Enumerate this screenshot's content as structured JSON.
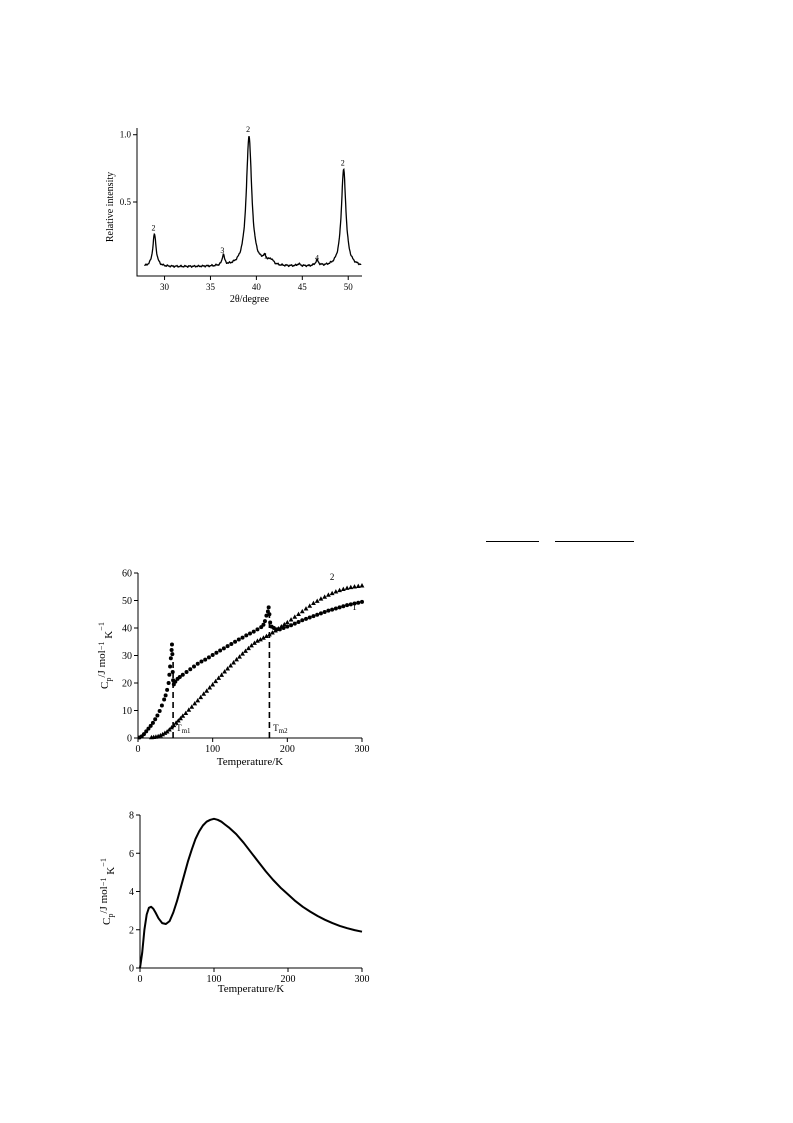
{
  "chart_data": [
    {
      "type": "line",
      "xlabel": "2θ/degree",
      "ylabel": "Relative intensity",
      "xlim": [
        27,
        51.5
      ],
      "ylim": [
        -0.05,
        1.05
      ],
      "xticks": [
        30,
        35,
        40,
        45,
        50
      ],
      "yticks": [
        0.5,
        1.0
      ],
      "yticklabels": [
        "0.5",
        "1.0"
      ],
      "grid": false,
      "baseline": 0.018,
      "peaks": [
        {
          "x": 28.9,
          "height": 0.24,
          "width": 0.22
        },
        {
          "x": 36.4,
          "height": 0.08,
          "width": 0.15
        },
        {
          "x": 39.2,
          "height": 0.97,
          "width": 0.35
        },
        {
          "x": 40.9,
          "height": 0.045,
          "width": 0.3
        },
        {
          "x": 41.6,
          "height": 0.035,
          "width": 0.3
        },
        {
          "x": 44.6,
          "height": 0.015,
          "width": 0.2
        },
        {
          "x": 46.6,
          "height": 0.04,
          "width": 0.2
        },
        {
          "x": 49.5,
          "height": 0.72,
          "width": 0.3
        }
      ],
      "annotations": [
        {
          "text": "2",
          "x": 28.8,
          "y": 0.29
        },
        {
          "text": "3",
          "x": 36.3,
          "y": 0.12
        },
        {
          "text": "2",
          "x": 39.1,
          "y": 1.02
        },
        {
          "text": "1",
          "x": 41.0,
          "y": 0.08
        },
        {
          "text": "4",
          "x": 46.6,
          "y": 0.065
        },
        {
          "text": "2",
          "x": 49.4,
          "y": 0.77
        }
      ]
    },
    {
      "type": "scatter",
      "xlabel": "Temperature/K",
      "ylabel": "Cp/J mol⁻¹ K⁻¹",
      "ylabel_parts": {
        "c": "C",
        "sub": "p",
        "unit": "/J mol",
        "exp1": "−1",
        "k": " K",
        "exp2": "−1"
      },
      "xlim": [
        0,
        300
      ],
      "ylim": [
        0,
        60
      ],
      "xticks": [
        0,
        100,
        200,
        300
      ],
      "yticks": [
        0,
        10,
        20,
        30,
        40,
        50,
        60
      ],
      "grid": false,
      "series": [
        {
          "name": "1",
          "marker": "circle",
          "points": [
            [
              2,
              0.2
            ],
            [
              5,
              0.6
            ],
            [
              8,
              1.4
            ],
            [
              11,
              2.4
            ],
            [
              14,
              3.4
            ],
            [
              17,
              4.4
            ],
            [
              20,
              5.5
            ],
            [
              23,
              6.8
            ],
            [
              26,
              8.2
            ],
            [
              29,
              9.8
            ],
            [
              32,
              11.8
            ],
            [
              35,
              14.0
            ],
            [
              37,
              15.5
            ],
            [
              39,
              17.5
            ],
            [
              41,
              20.0
            ],
            [
              42,
              23.0
            ],
            [
              43,
              26.0
            ],
            [
              44,
              29.0
            ],
            [
              45,
              32.0
            ],
            [
              45.5,
              34.0
            ],
            [
              46,
              30.5
            ],
            [
              46.5,
              24.0
            ],
            [
              47,
              21.0
            ],
            [
              48,
              19.5
            ],
            [
              50,
              20.5
            ],
            [
              53,
              21.5
            ],
            [
              56,
              22.2
            ],
            [
              60,
              23.0
            ],
            [
              65,
              24.0
            ],
            [
              70,
              25.0
            ],
            [
              75,
              26.0
            ],
            [
              80,
              27.0
            ],
            [
              85,
              27.8
            ],
            [
              90,
              28.5
            ],
            [
              95,
              29.3
            ],
            [
              100,
              30.2
            ],
            [
              105,
              31.0
            ],
            [
              110,
              31.8
            ],
            [
              115,
              32.6
            ],
            [
              120,
              33.4
            ],
            [
              125,
              34.2
            ],
            [
              130,
              35.0
            ],
            [
              135,
              35.8
            ],
            [
              140,
              36.5
            ],
            [
              145,
              37.3
            ],
            [
              150,
              38.0
            ],
            [
              155,
              38.7
            ],
            [
              160,
              39.5
            ],
            [
              165,
              40.3
            ],
            [
              168,
              41.2
            ],
            [
              170,
              42.5
            ],
            [
              172,
              44.5
            ],
            [
              174,
              46.0
            ],
            [
              175,
              47.5
            ],
            [
              176,
              45.0
            ],
            [
              177,
              42.0
            ],
            [
              179,
              40.5
            ],
            [
              182,
              40.0
            ],
            [
              186,
              39.5
            ],
            [
              190,
              39.5
            ],
            [
              195,
              40.0
            ],
            [
              200,
              40.5
            ],
            [
              205,
              41.0
            ],
            [
              210,
              41.6
            ],
            [
              215,
              42.2
            ],
            [
              220,
              42.8
            ],
            [
              225,
              43.3
            ],
            [
              230,
              43.8
            ],
            [
              235,
              44.3
            ],
            [
              240,
              44.8
            ],
            [
              245,
              45.3
            ],
            [
              250,
              45.8
            ],
            [
              255,
              46.3
            ],
            [
              260,
              46.7
            ],
            [
              265,
              47.1
            ],
            [
              270,
              47.5
            ],
            [
              275,
              47.9
            ],
            [
              280,
              48.3
            ],
            [
              285,
              48.6
            ],
            [
              290,
              48.9
            ],
            [
              295,
              49.2
            ],
            [
              300,
              49.5
            ]
          ]
        },
        {
          "name": "2",
          "marker": "triangle",
          "points": [
            [
              18,
              0.2
            ],
            [
              21,
              0.3
            ],
            [
              24,
              0.4
            ],
            [
              27,
              0.6
            ],
            [
              30,
              0.9
            ],
            [
              33,
              1.3
            ],
            [
              36,
              1.8
            ],
            [
              39,
              2.3
            ],
            [
              42,
              3.0
            ],
            [
              45,
              3.8
            ],
            [
              48,
              4.6
            ],
            [
              51,
              5.5
            ],
            [
              54,
              6.3
            ],
            [
              57,
              7.1
            ],
            [
              60,
              8.0
            ],
            [
              64,
              9.0
            ],
            [
              68,
              10.2
            ],
            [
              72,
              11.3
            ],
            [
              76,
              12.5
            ],
            [
              80,
              13.6
            ],
            [
              84,
              14.8
            ],
            [
              88,
              16.0
            ],
            [
              92,
              17.1
            ],
            [
              96,
              18.3
            ],
            [
              100,
              19.4
            ],
            [
              104,
              20.6
            ],
            [
              108,
              21.8
            ],
            [
              112,
              22.9
            ],
            [
              116,
              24.1
            ],
            [
              120,
              25.2
            ],
            [
              124,
              26.3
            ],
            [
              128,
              27.4
            ],
            [
              132,
              28.5
            ],
            [
              136,
              29.5
            ],
            [
              140,
              30.6
            ],
            [
              144,
              31.6
            ],
            [
              148,
              32.6
            ],
            [
              152,
              33.6
            ],
            [
              156,
              34.5
            ],
            [
              160,
              35.3
            ],
            [
              164,
              35.8
            ],
            [
              168,
              36.4
            ],
            [
              172,
              37.0
            ],
            [
              176,
              37.6
            ],
            [
              180,
              38.3
            ],
            [
              184,
              39.0
            ],
            [
              188,
              39.8
            ],
            [
              192,
              40.5
            ],
            [
              196,
              41.3
            ],
            [
              200,
              42.0
            ],
            [
              205,
              43.0
            ],
            [
              210,
              44.0
            ],
            [
              215,
              45.0
            ],
            [
              220,
              46.0
            ],
            [
              225,
              47.0
            ],
            [
              230,
              48.0
            ],
            [
              235,
              49.0
            ],
            [
              240,
              49.8
            ],
            [
              245,
              50.6
            ],
            [
              250,
              51.3
            ],
            [
              255,
              52.0
            ],
            [
              260,
              52.6
            ],
            [
              265,
              53.2
            ],
            [
              270,
              53.7
            ],
            [
              275,
              54.1
            ],
            [
              280,
              54.5
            ],
            [
              285,
              54.8
            ],
            [
              290,
              55.0
            ],
            [
              295,
              55.2
            ],
            [
              300,
              55.4
            ]
          ]
        }
      ],
      "series_labels": [
        {
          "text": "1",
          "x": 290,
          "y": 46.5
        },
        {
          "text": "2",
          "x": 260,
          "y": 57.5
        }
      ],
      "reference_lines": [
        {
          "x": 47,
          "y_top": 29,
          "label_main": "T",
          "label_sub": "m1",
          "label_x": 51,
          "label_y": 2.5
        },
        {
          "x": 176,
          "y_top": 45,
          "label_main": "T",
          "label_sub": "m2",
          "label_x": 181,
          "label_y": 2.5
        }
      ]
    },
    {
      "type": "line",
      "xlabel": "Temperature/K",
      "ylabel": "Cp/J mol⁻¹ K⁻¹",
      "ylabel_parts": {
        "c": "C",
        "sub": "p",
        "unit": "/J mol",
        "exp1": "−1",
        "k": " K",
        "exp2": "−1"
      },
      "xlim": [
        0,
        300
      ],
      "ylim": [
        0,
        8
      ],
      "xticks": [
        0,
        100,
        200,
        300
      ],
      "yticks": [
        0,
        2,
        4,
        6,
        8
      ],
      "grid": false,
      "x": [
        0,
        3,
        6,
        9,
        12,
        15,
        18,
        21,
        25,
        30,
        35,
        40,
        45,
        50,
        55,
        60,
        65,
        70,
        75,
        80,
        85,
        90,
        95,
        100,
        105,
        110,
        115,
        120,
        130,
        140,
        150,
        160,
        170,
        180,
        190,
        200,
        210,
        220,
        230,
        240,
        250,
        260,
        270,
        280,
        290,
        300
      ],
      "y": [
        0,
        0.8,
        2.0,
        2.8,
        3.15,
        3.2,
        3.1,
        2.9,
        2.6,
        2.35,
        2.3,
        2.45,
        2.9,
        3.5,
        4.2,
        4.9,
        5.6,
        6.2,
        6.75,
        7.15,
        7.45,
        7.65,
        7.75,
        7.8,
        7.75,
        7.65,
        7.5,
        7.35,
        7.0,
        6.55,
        6.05,
        5.55,
        5.05,
        4.6,
        4.2,
        3.85,
        3.5,
        3.2,
        2.95,
        2.72,
        2.52,
        2.35,
        2.2,
        2.08,
        1.98,
        1.9
      ]
    }
  ]
}
